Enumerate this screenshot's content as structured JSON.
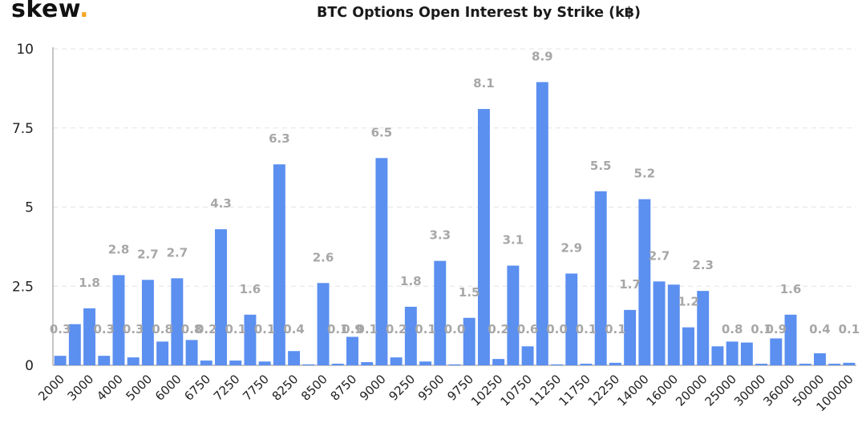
{
  "brand": {
    "name": "skew",
    "dot": "."
  },
  "chart_data": {
    "type": "bar",
    "title": "BTC Options Open Interest by Strike (k฿)",
    "xlabel": "",
    "ylabel": "",
    "ylim": [
      0,
      10
    ],
    "yticks": [
      0,
      2.5,
      5,
      7.5,
      10
    ],
    "ytick_labels": [
      "0",
      "2.5",
      "5",
      "7.5",
      "10"
    ],
    "grid": "horizontal-dashed",
    "legend": "none",
    "bar_color": "#5b8ff0",
    "label_color": "#a7a7a7",
    "x_tick_labels": [
      "2000",
      "3000",
      "4000",
      "5000",
      "6000",
      "6750",
      "7250",
      "7750",
      "8250",
      "8500",
      "8750",
      "9000",
      "9250",
      "9500",
      "9750",
      "10250",
      "10750",
      "11250",
      "11750",
      "12250",
      "14000",
      "16000",
      "20000",
      "25000",
      "30000",
      "36000",
      "50000",
      "100000"
    ],
    "values": [
      0.3,
      1.3,
      1.8,
      0.3,
      2.85,
      0.25,
      2.7,
      0.75,
      2.75,
      0.8,
      0.15,
      4.3,
      0.15,
      1.6,
      0.12,
      6.35,
      0.45,
      0.03,
      2.6,
      0.05,
      0.9,
      0.1,
      6.55,
      0.25,
      1.85,
      0.12,
      3.3,
      0.03,
      1.5,
      8.1,
      0.2,
      3.15,
      0.6,
      8.95,
      0.03,
      2.9,
      0.05,
      5.5,
      0.08,
      1.75,
      5.25,
      2.65,
      2.55,
      1.2,
      2.35,
      0.6,
      0.75,
      0.72,
      0.05,
      0.85,
      1.6,
      0.05,
      0.38,
      0.05,
      0.08
    ],
    "data_labels": [
      {
        "bar": 0,
        "text": "0.3"
      },
      {
        "bar": 2,
        "text": "1.8"
      },
      {
        "bar": 3,
        "text": "0.3"
      },
      {
        "bar": 4,
        "text": "2.8"
      },
      {
        "bar": 5,
        "text": "0.3"
      },
      {
        "bar": 6,
        "text": "2.7"
      },
      {
        "bar": 7,
        "text": "0.8"
      },
      {
        "bar": 8,
        "text": "2.7"
      },
      {
        "bar": 9,
        "text": "0.8"
      },
      {
        "bar": 10,
        "text": "0.2"
      },
      {
        "bar": 11,
        "text": "4.3"
      },
      {
        "bar": 12,
        "text": "0.1"
      },
      {
        "bar": 13,
        "text": "1.6"
      },
      {
        "bar": 14,
        "text": "0.1"
      },
      {
        "bar": 15,
        "text": "6.3"
      },
      {
        "bar": 16,
        "text": "0.4"
      },
      {
        "bar": 18,
        "text": "2.6"
      },
      {
        "bar": 19,
        "text": "0.1"
      },
      {
        "bar": 20,
        "text": "0.9"
      },
      {
        "bar": 21,
        "text": "0.1"
      },
      {
        "bar": 22,
        "text": "6.5"
      },
      {
        "bar": 23,
        "text": "0.2"
      },
      {
        "bar": 24,
        "text": "1.8"
      },
      {
        "bar": 25,
        "text": "0.1"
      },
      {
        "bar": 26,
        "text": "3.3"
      },
      {
        "bar": 27,
        "text": "0.0"
      },
      {
        "bar": 28,
        "text": "1.5"
      },
      {
        "bar": 29,
        "text": "8.1"
      },
      {
        "bar": 30,
        "text": "0.2"
      },
      {
        "bar": 31,
        "text": "3.1"
      },
      {
        "bar": 32,
        "text": "0.6"
      },
      {
        "bar": 33,
        "text": "8.9"
      },
      {
        "bar": 34,
        "text": "0.0"
      },
      {
        "bar": 35,
        "text": "2.9"
      },
      {
        "bar": 36,
        "text": "0.1"
      },
      {
        "bar": 37,
        "text": "5.5"
      },
      {
        "bar": 38,
        "text": "0.1"
      },
      {
        "bar": 39,
        "text": "1.7"
      },
      {
        "bar": 40,
        "text": "5.2"
      },
      {
        "bar": 41,
        "text": "2.7"
      },
      {
        "bar": 43,
        "text": "1.2"
      },
      {
        "bar": 44,
        "text": "2.3"
      },
      {
        "bar": 46,
        "text": "0.8"
      },
      {
        "bar": 48,
        "text": "0.1"
      },
      {
        "bar": 49,
        "text": "0.9"
      },
      {
        "bar": 50,
        "text": "1.6"
      },
      {
        "bar": 52,
        "text": "0.4"
      },
      {
        "bar": 54,
        "text": "0.1"
      }
    ]
  }
}
